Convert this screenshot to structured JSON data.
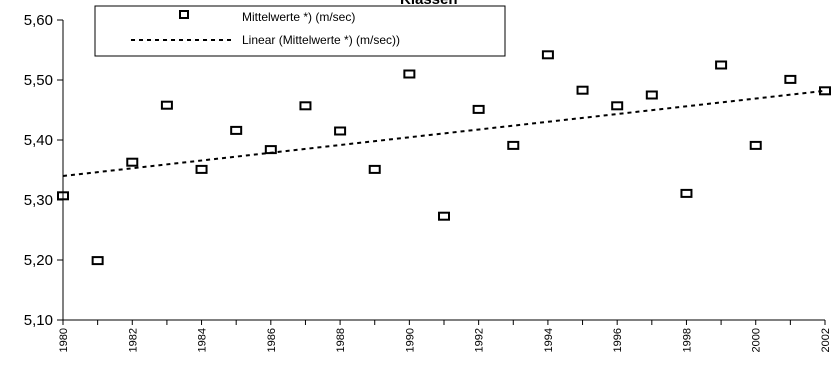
{
  "chart_data": {
    "type": "scatter",
    "title": "Klassen",
    "xlabel": "",
    "ylabel": "",
    "ylim": [
      5.1,
      5.6
    ],
    "xlim": [
      1980,
      2002
    ],
    "y_ticks": [
      "5,10",
      "5,20",
      "5,30",
      "5,40",
      "5,50",
      "5,60"
    ],
    "x_ticks": [
      "1980",
      "1982",
      "1984",
      "1986",
      "1988",
      "1990",
      "1992",
      "1994",
      "1996",
      "1998",
      "2000",
      "2002"
    ],
    "grid": false,
    "legend_position": "top",
    "series": [
      {
        "name": "Mittelwerte *)  (m/sec)",
        "marker": "open-square",
        "x": [
          1980,
          1981,
          1982,
          1983,
          1984,
          1985,
          1986,
          1987,
          1988,
          1989,
          1990,
          1991,
          1992,
          1993,
          1994,
          1995,
          1996,
          1997,
          1998,
          1999,
          2000,
          2001,
          2002
        ],
        "y": [
          5.307,
          5.199,
          5.363,
          5.458,
          5.351,
          5.416,
          5.384,
          5.457,
          5.415,
          5.351,
          5.51,
          5.273,
          5.451,
          5.391,
          5.542,
          5.483,
          5.457,
          5.475,
          5.311,
          5.525,
          5.391,
          5.501,
          5.482
        ]
      },
      {
        "name": "Linear (Mittelwerte *)  (m/sec))",
        "style": "dotted-trendline",
        "x": [
          1980,
          2002
        ],
        "y": [
          5.34,
          5.482
        ]
      }
    ]
  }
}
